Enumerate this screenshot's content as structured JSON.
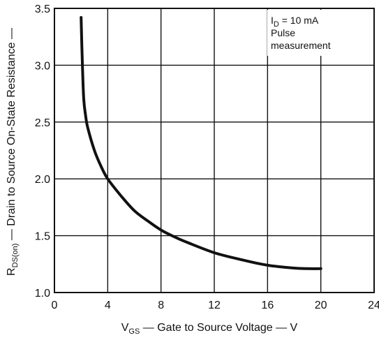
{
  "chart_data": {
    "type": "line",
    "title": "",
    "xlabel": {
      "main": "V",
      "sub": "GS",
      "rest": " — Gate to Source Voltage — V"
    },
    "ylabel": {
      "main": "R",
      "sub": "DS(on)",
      "rest": " — Drain to Source On-State Resistance —"
    },
    "xlim": [
      0,
      24
    ],
    "ylim": [
      1.0,
      3.5
    ],
    "x_ticks": [
      0,
      4,
      8,
      12,
      16,
      20,
      24
    ],
    "y_ticks": [
      1.0,
      1.5,
      2.0,
      2.5,
      3.0,
      3.5
    ],
    "x_tick_labels": [
      "0",
      "4",
      "8",
      "12",
      "16",
      "20",
      "24"
    ],
    "y_tick_labels": [
      "1.0",
      "1.5",
      "2.0",
      "2.5",
      "3.0",
      "3.5"
    ],
    "grid": true,
    "annotation": {
      "line1_main": "I",
      "line1_sub": "D",
      "line1_rest": " = 10 mA",
      "line2": "Pulse",
      "line3": "measurement"
    },
    "series": [
      {
        "x": [
          2.0,
          2.1,
          2.2,
          2.35,
          2.5,
          3.0,
          3.5,
          4.0,
          5.0,
          6.0,
          7.0,
          8.0,
          9.0,
          10.0,
          12.0,
          14.0,
          16.0,
          18.0,
          19.0,
          20.0
        ],
        "y": [
          3.42,
          3.0,
          2.7,
          2.55,
          2.45,
          2.25,
          2.11,
          2.0,
          1.85,
          1.72,
          1.63,
          1.55,
          1.49,
          1.44,
          1.35,
          1.29,
          1.24,
          1.215,
          1.21,
          1.21
        ]
      }
    ]
  }
}
